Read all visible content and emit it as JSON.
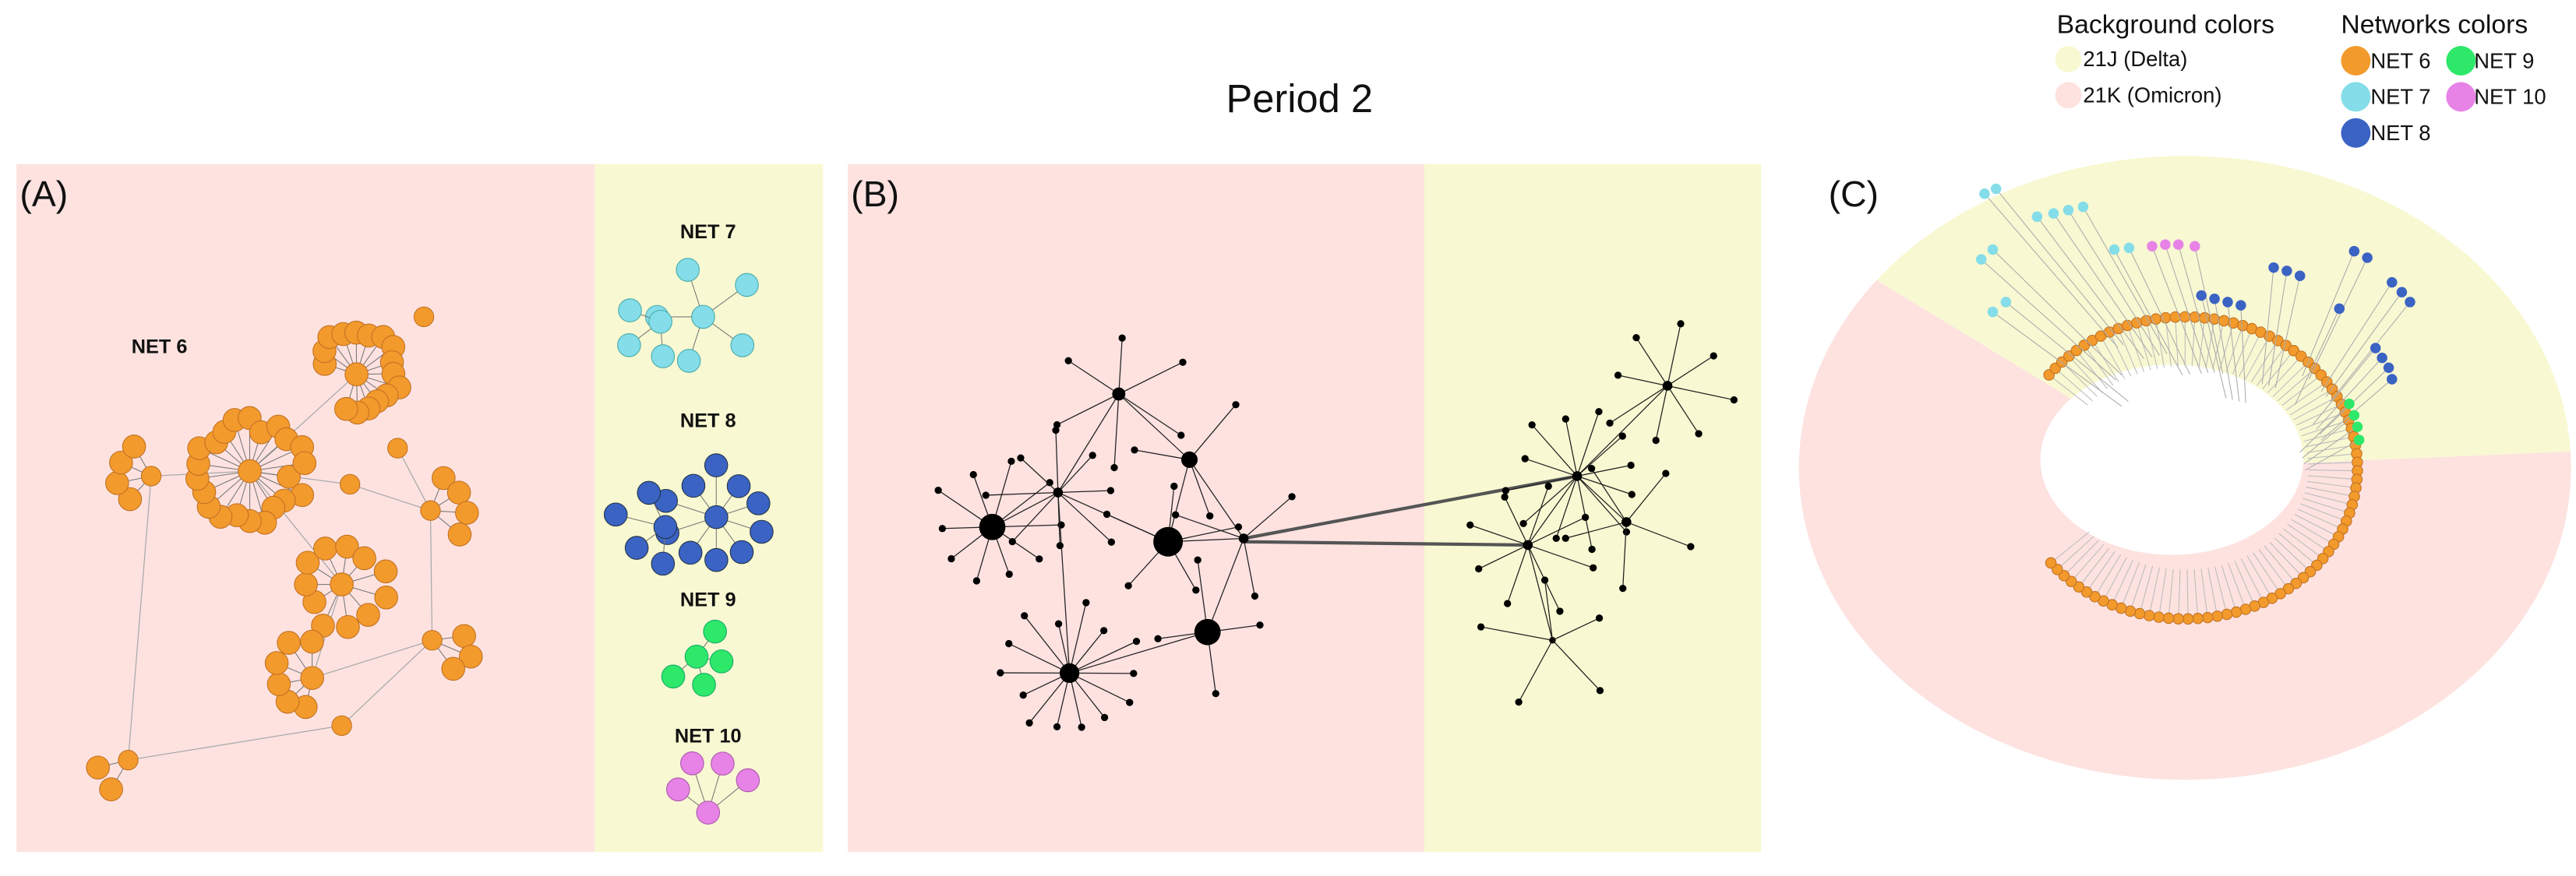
{
  "title": "Period 2",
  "panels": [
    {
      "label": "(A)",
      "networks": [
        "NET 6",
        "NET 7",
        "NET 8",
        "NET 9",
        "NET 10"
      ]
    },
    {
      "label": "(B)"
    },
    {
      "label": "(C)"
    }
  ],
  "legend": {
    "background": {
      "title": "Background colors",
      "items": [
        "21J (Delta)",
        "21K (Omicron)"
      ]
    },
    "networks": {
      "title": "Networks colors",
      "items": [
        "NET 6",
        "NET 7",
        "NET 8",
        "NET 9",
        "NET 10"
      ]
    }
  }
}
